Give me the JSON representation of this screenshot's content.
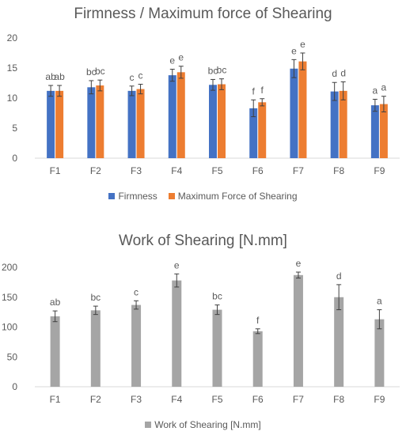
{
  "chart_data": [
    {
      "type": "bar",
      "title": "Firmness / Maximum force of Shearing",
      "categories": [
        "F1",
        "F2",
        "F3",
        "F4",
        "F5",
        "F6",
        "F7",
        "F8",
        "F9"
      ],
      "ylim": [
        0,
        20
      ],
      "yticks": [
        0,
        5,
        10,
        15,
        20
      ],
      "grid": false,
      "legend_position": "bottom",
      "series": [
        {
          "name": "Firmness",
          "color": "#4472C4",
          "values": [
            11.2,
            11.8,
            11.2,
            13.8,
            12.2,
            8.3,
            14.9,
            11.1,
            8.8
          ],
          "errors": [
            0.9,
            1.1,
            0.8,
            1.0,
            0.9,
            1.4,
            1.5,
            1.5,
            1.0
          ],
          "labels": [
            "ab",
            "bc",
            "c",
            "e",
            "bc",
            "f",
            "e",
            "d",
            "a"
          ]
        },
        {
          "name": "Maximum Force of Shearing",
          "color": "#ED7D31",
          "values": [
            11.2,
            12.1,
            11.5,
            14.3,
            12.3,
            9.3,
            16.1,
            11.2,
            9.0
          ],
          "errors": [
            0.9,
            0.9,
            0.8,
            1.0,
            0.9,
            0.6,
            1.4,
            1.5,
            1.3
          ],
          "labels": [
            "ab",
            "bc",
            "c",
            "e",
            "bc",
            "f",
            "e",
            "d",
            "a"
          ]
        }
      ]
    },
    {
      "type": "bar",
      "title": "Work of Shearing [N.mm]",
      "categories": [
        "F1",
        "F2",
        "F3",
        "F4",
        "F5",
        "F6",
        "F7",
        "F8",
        "F9"
      ],
      "ylim": [
        0,
        200
      ],
      "yticks": [
        0,
        50,
        100,
        150,
        200
      ],
      "grid": false,
      "legend_position": "bottom",
      "series": [
        {
          "name": "Work of Shearing [N.mm]",
          "color": "#A5A5A5",
          "values": [
            118,
            128,
            137,
            178,
            129,
            93,
            187,
            150,
            113
          ],
          "errors": [
            9,
            7,
            7,
            11,
            8,
            4,
            5,
            21,
            16
          ],
          "labels": [
            "ab",
            "bc",
            "c",
            "e",
            "bc",
            "f",
            "e",
            "d",
            "a"
          ]
        }
      ]
    }
  ]
}
